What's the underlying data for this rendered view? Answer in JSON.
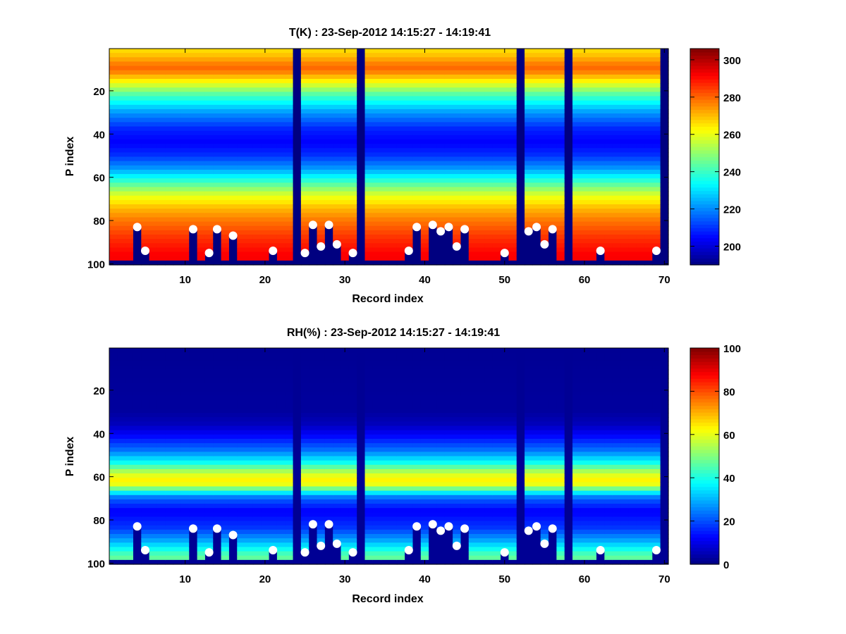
{
  "chart_data": [
    {
      "type": "heatmap",
      "title": "T(K) : 23-Sep-2012 14:15:27 - 14:19:41",
      "xlabel": "Record index",
      "ylabel": "P index",
      "xlim": [
        0.5,
        70.5
      ],
      "ylim": [
        0.5,
        100.5
      ],
      "y_reversed": true,
      "x_ticks": [
        10,
        20,
        30,
        40,
        50,
        60,
        70
      ],
      "y_ticks": [
        20,
        40,
        60,
        80,
        100
      ],
      "colormap": "jet",
      "colorbar": {
        "min": 190,
        "max": 306,
        "ticks": [
          200,
          220,
          240,
          260,
          280,
          300
        ]
      },
      "vertical_profile_level": [
        {
          "p": 1,
          "v": 266
        },
        {
          "p": 4,
          "v": 270
        },
        {
          "p": 8,
          "v": 278
        },
        {
          "p": 10,
          "v": 280
        },
        {
          "p": 12,
          "v": 275
        },
        {
          "p": 16,
          "v": 262
        },
        {
          "p": 22,
          "v": 242
        },
        {
          "p": 30,
          "v": 222
        },
        {
          "p": 38,
          "v": 208
        },
        {
          "p": 44,
          "v": 204
        },
        {
          "p": 50,
          "v": 210
        },
        {
          "p": 56,
          "v": 222
        },
        {
          "p": 62,
          "v": 240
        },
        {
          "p": 68,
          "v": 258
        },
        {
          "p": 74,
          "v": 270
        },
        {
          "p": 80,
          "v": 278
        },
        {
          "p": 88,
          "v": 286
        },
        {
          "p": 96,
          "v": 292
        },
        {
          "p": 100,
          "v": 292
        }
      ],
      "bottom_fill_value": 190,
      "missing_columns": [
        24,
        32,
        52,
        58,
        70
      ],
      "surface_points": [
        {
          "x": 4,
          "y": 83
        },
        {
          "x": 5,
          "y": 94
        },
        {
          "x": 11,
          "y": 84
        },
        {
          "x": 13,
          "y": 95
        },
        {
          "x": 14,
          "y": 84
        },
        {
          "x": 16,
          "y": 87
        },
        {
          "x": 21,
          "y": 94
        },
        {
          "x": 25,
          "y": 95
        },
        {
          "x": 26,
          "y": 82
        },
        {
          "x": 27,
          "y": 92
        },
        {
          "x": 28,
          "y": 82
        },
        {
          "x": 29,
          "y": 91
        },
        {
          "x": 31,
          "y": 95
        },
        {
          "x": 38,
          "y": 94
        },
        {
          "x": 39,
          "y": 83
        },
        {
          "x": 41,
          "y": 82
        },
        {
          "x": 42,
          "y": 85
        },
        {
          "x": 43,
          "y": 83
        },
        {
          "x": 44,
          "y": 92
        },
        {
          "x": 45,
          "y": 84
        },
        {
          "x": 50,
          "y": 95
        },
        {
          "x": 53,
          "y": 85
        },
        {
          "x": 54,
          "y": 83
        },
        {
          "x": 55,
          "y": 91
        },
        {
          "x": 56,
          "y": 84
        },
        {
          "x": 62,
          "y": 94
        },
        {
          "x": 69,
          "y": 94
        }
      ]
    },
    {
      "type": "heatmap",
      "title": "RH(%) : 23-Sep-2012 14:15:27 - 14:19:41",
      "xlabel": "Record index",
      "ylabel": "P index",
      "xlim": [
        0.5,
        70.5
      ],
      "ylim": [
        0.5,
        100.5
      ],
      "y_reversed": true,
      "x_ticks": [
        10,
        20,
        30,
        40,
        50,
        60,
        70
      ],
      "y_ticks": [
        20,
        40,
        60,
        80,
        100
      ],
      "colormap": "jet",
      "colorbar": {
        "min": 0,
        "max": 100,
        "ticks": [
          0,
          20,
          40,
          60,
          80,
          100
        ]
      },
      "vertical_profile_level": [
        {
          "p": 1,
          "v": 2
        },
        {
          "p": 30,
          "v": 3
        },
        {
          "p": 36,
          "v": 6
        },
        {
          "p": 42,
          "v": 14
        },
        {
          "p": 48,
          "v": 24
        },
        {
          "p": 54,
          "v": 40
        },
        {
          "p": 58,
          "v": 56
        },
        {
          "p": 61,
          "v": 64
        },
        {
          "p": 64,
          "v": 60
        },
        {
          "p": 67,
          "v": 38
        },
        {
          "p": 70,
          "v": 22
        },
        {
          "p": 76,
          "v": 12
        },
        {
          "p": 84,
          "v": 18
        },
        {
          "p": 90,
          "v": 30
        },
        {
          "p": 96,
          "v": 45
        },
        {
          "p": 100,
          "v": 50
        }
      ],
      "bottom_fill_value": 2,
      "missing_columns": [
        24,
        32,
        52,
        58,
        70
      ],
      "surface_points": [
        {
          "x": 4,
          "y": 83
        },
        {
          "x": 5,
          "y": 94
        },
        {
          "x": 11,
          "y": 84
        },
        {
          "x": 13,
          "y": 95
        },
        {
          "x": 14,
          "y": 84
        },
        {
          "x": 16,
          "y": 87
        },
        {
          "x": 21,
          "y": 94
        },
        {
          "x": 25,
          "y": 95
        },
        {
          "x": 26,
          "y": 82
        },
        {
          "x": 27,
          "y": 92
        },
        {
          "x": 28,
          "y": 82
        },
        {
          "x": 29,
          "y": 91
        },
        {
          "x": 31,
          "y": 95
        },
        {
          "x": 38,
          "y": 94
        },
        {
          "x": 39,
          "y": 83
        },
        {
          "x": 41,
          "y": 82
        },
        {
          "x": 42,
          "y": 85
        },
        {
          "x": 43,
          "y": 83
        },
        {
          "x": 44,
          "y": 92
        },
        {
          "x": 45,
          "y": 84
        },
        {
          "x": 50,
          "y": 95
        },
        {
          "x": 53,
          "y": 85
        },
        {
          "x": 54,
          "y": 83
        },
        {
          "x": 55,
          "y": 91
        },
        {
          "x": 56,
          "y": 84
        },
        {
          "x": 62,
          "y": 94
        },
        {
          "x": 69,
          "y": 94
        }
      ]
    }
  ]
}
